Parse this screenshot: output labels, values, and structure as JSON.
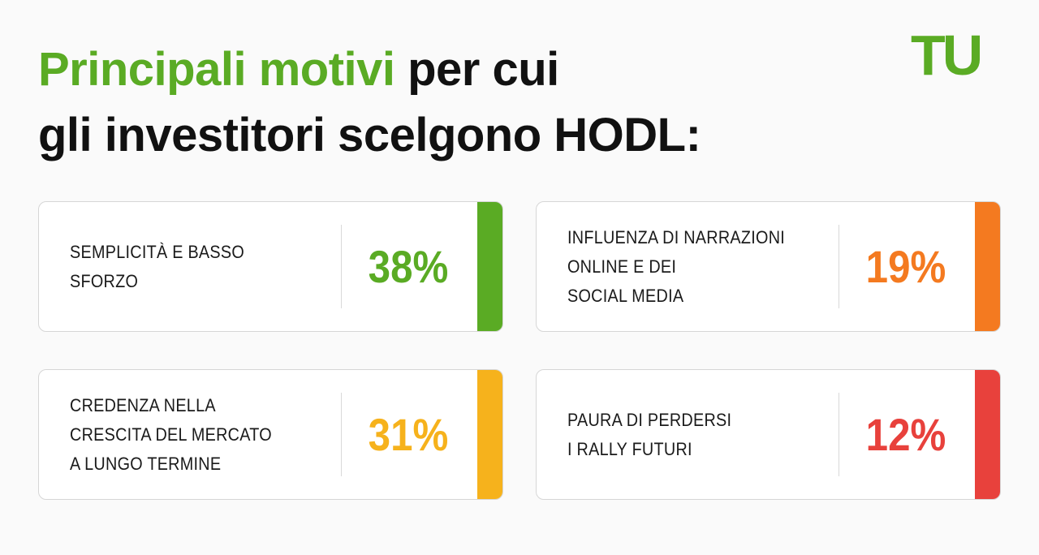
{
  "header": {
    "title_highlight": "Principali motivi",
    "title_rest": "per cui",
    "title_line2": "gli investitori scelgono HODL:",
    "logo": "TU"
  },
  "cards": [
    {
      "label_lines": [
        "SEMPLICITÀ E BASSO",
        "SFORZO"
      ],
      "value": "38%",
      "color": "#5aab24"
    },
    {
      "label_lines": [
        "INFLUENZA DI NARRAZIONI",
        "ONLINE E DEI",
        "SOCIAL MEDIA"
      ],
      "value": "19%",
      "color": "#f47a20"
    },
    {
      "label_lines": [
        "CREDENZA NELLA",
        "CRESCITA DEL MERCATO",
        "A LUNGO TERMINE"
      ],
      "value": "31%",
      "color": "#f6b21c"
    },
    {
      "label_lines": [
        "PAURA DI PERDERSI",
        "I RALLY FUTURI"
      ],
      "value": "12%",
      "color": "#e8413c"
    }
  ]
}
